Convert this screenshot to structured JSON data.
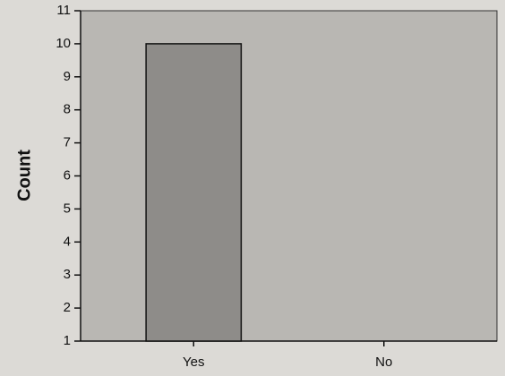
{
  "chart_data": {
    "type": "bar",
    "y_label": "Count",
    "categories": [
      "Yes",
      "No"
    ],
    "values": [
      10,
      1
    ],
    "color": "#8e8c89",
    "ylim": [
      1,
      11
    ],
    "yticks": [
      1,
      2,
      3,
      4,
      5,
      6,
      7,
      8,
      9,
      10,
      11
    ],
    "grid": false
  }
}
